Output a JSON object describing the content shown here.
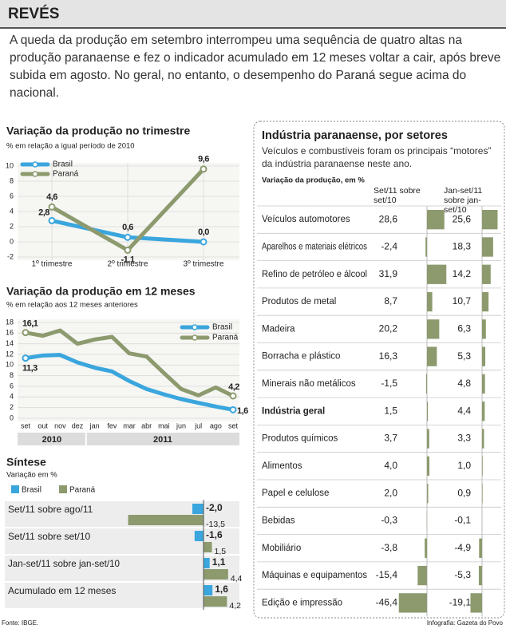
{
  "header": {
    "title": "REVÉS",
    "intro": "A queda da produção em setembro interrompeu uma sequência de quatro altas na produção paranaense e fez o indicador acumulado em 12 meses voltar a cair, após breve subida em agosto. No geral, no entanto, o desempenho do Paraná segue acima do nacional."
  },
  "chart_data": [
    {
      "type": "line",
      "title": "Variação da produção no trimestre",
      "subtitle": "% em relação a igual período de 2010",
      "categories": [
        "1º trimestre",
        "2º trimestre",
        "3º trimestre"
      ],
      "series": [
        {
          "name": "Brasil",
          "color": "#3aa6dd",
          "values": [
            2.8,
            0.6,
            0.0
          ],
          "value_labels": [
            "2,8",
            "0,6",
            "0,0"
          ]
        },
        {
          "name": "Paraná",
          "color": "#8c9a6e",
          "values": [
            4.6,
            -1.1,
            9.6
          ],
          "value_labels": [
            "4,6",
            "-1,1",
            "9,6"
          ]
        }
      ],
      "ylim": [
        -2,
        10
      ],
      "yticks": [
        -2,
        0,
        2,
        4,
        6,
        8,
        10
      ],
      "grid": true,
      "legend": "top-left"
    },
    {
      "type": "line",
      "title": "Variação da produção em 12 meses",
      "subtitle": "% em relação aos 12 meses anteriores",
      "categories": [
        "set",
        "out",
        "nov",
        "dez",
        "jan",
        "fev",
        "mar",
        "abr",
        "mai",
        "jun",
        "jul",
        "ago",
        "set"
      ],
      "x_group_labels": [
        "2010",
        "2011"
      ],
      "series": [
        {
          "name": "Brasil",
          "color": "#3aa6dd",
          "values": [
            11.3,
            11.8,
            11.9,
            10.5,
            9.5,
            8.8,
            7.0,
            5.5,
            4.5,
            3.6,
            2.9,
            2.2,
            1.6
          ],
          "value_labels": [
            "11,3",
            null,
            null,
            null,
            null,
            null,
            null,
            null,
            null,
            null,
            null,
            null,
            "1,6"
          ]
        },
        {
          "name": "Paraná",
          "color": "#8c9a6e",
          "values": [
            16.1,
            15.5,
            16.5,
            14.0,
            14.8,
            15.3,
            12.2,
            11.6,
            8.5,
            5.5,
            4.3,
            5.8,
            4.2
          ],
          "value_labels": [
            "16,1",
            null,
            null,
            null,
            null,
            null,
            null,
            null,
            null,
            null,
            null,
            null,
            "4,2"
          ]
        }
      ],
      "ylim": [
        0,
        18
      ],
      "yticks": [
        0,
        2,
        4,
        6,
        8,
        10,
        12,
        14,
        16,
        18
      ],
      "grid": true,
      "legend": "top-right"
    },
    {
      "type": "hbar",
      "title": "Síntese",
      "subtitle": "Variação em %",
      "categories": [
        "Set/11 sobre ago/11",
        "Set/11 sobre set/10",
        "Jan-set/11 sobre jan-set/10",
        "Acumulado em 12 meses"
      ],
      "series": [
        {
          "name": "Brasil",
          "color": "#3aa6dd",
          "values": [
            -2.0,
            -1.6,
            1.1,
            1.6
          ],
          "value_labels": [
            "-2,0",
            "-1,6",
            "1,1",
            "1,6"
          ]
        },
        {
          "name": "Paraná",
          "color": "#8c9a6e",
          "values": [
            -13.5,
            1.5,
            4.4,
            4.2
          ],
          "value_labels": [
            "-13,5",
            "1,5",
            "4,4",
            "4,2"
          ]
        }
      ],
      "xlim": [
        -15,
        5
      ],
      "legend": "top-left"
    },
    {
      "type": "bar-table",
      "title": "Indústria paranaense, por setores",
      "subtitle": "Veículos e combustíveis foram os principais “motores” da indústria paranaense neste ano.",
      "unit_label": "Variação da produção, em %",
      "categories": [
        "Veículos automotores",
        "Aparelhos e materiais elétricos",
        "Refino de petróleo e álcool",
        "Produtos de metal",
        "Madeira",
        "Borracha e plástico",
        "Minerais não metálicos",
        "Indústria geral",
        "Produtos químicos",
        "Alimentos",
        "Papel e celulose",
        "Bebidas",
        "Mobiliário",
        "Máquinas e equipamentos",
        "Edição e impressão"
      ],
      "series": [
        {
          "name": "Set/11 sobre set/10",
          "color": "#8c9a6e",
          "values": [
            28.6,
            -2.4,
            31.9,
            8.7,
            20.2,
            16.3,
            -1.5,
            1.5,
            3.7,
            4.0,
            2.0,
            -0.3,
            -3.8,
            -15.4,
            -46.4
          ],
          "value_labels": [
            "28,6",
            "-2,4",
            "31,9",
            "8,7",
            "20,2",
            "16,3",
            "-1,5",
            "1,5",
            "3,7",
            "4,0",
            "2,0",
            "-0,3",
            "-3,8",
            "-15,4",
            "-46,4"
          ]
        },
        {
          "name": "Jan-set/11 sobre jan-set/10",
          "color": "#8c9a6e",
          "values": [
            25.6,
            18.3,
            14.2,
            10.7,
            6.3,
            5.3,
            4.8,
            4.4,
            3.3,
            1.0,
            0.9,
            -0.1,
            -4.9,
            -5.3,
            -19.1
          ],
          "value_labels": [
            "25,6",
            "18,3",
            "14,2",
            "10,7",
            "6,3",
            "5,3",
            "4,8",
            "4,4",
            "3,3",
            "1,0",
            "0,9",
            "-0,1",
            "-4,9",
            "-5,3",
            "-19,1"
          ]
        }
      ]
    }
  ],
  "footer": {
    "source": "Fonte: IBGE.",
    "credit": "Infografia: Gazeta do Povo"
  }
}
